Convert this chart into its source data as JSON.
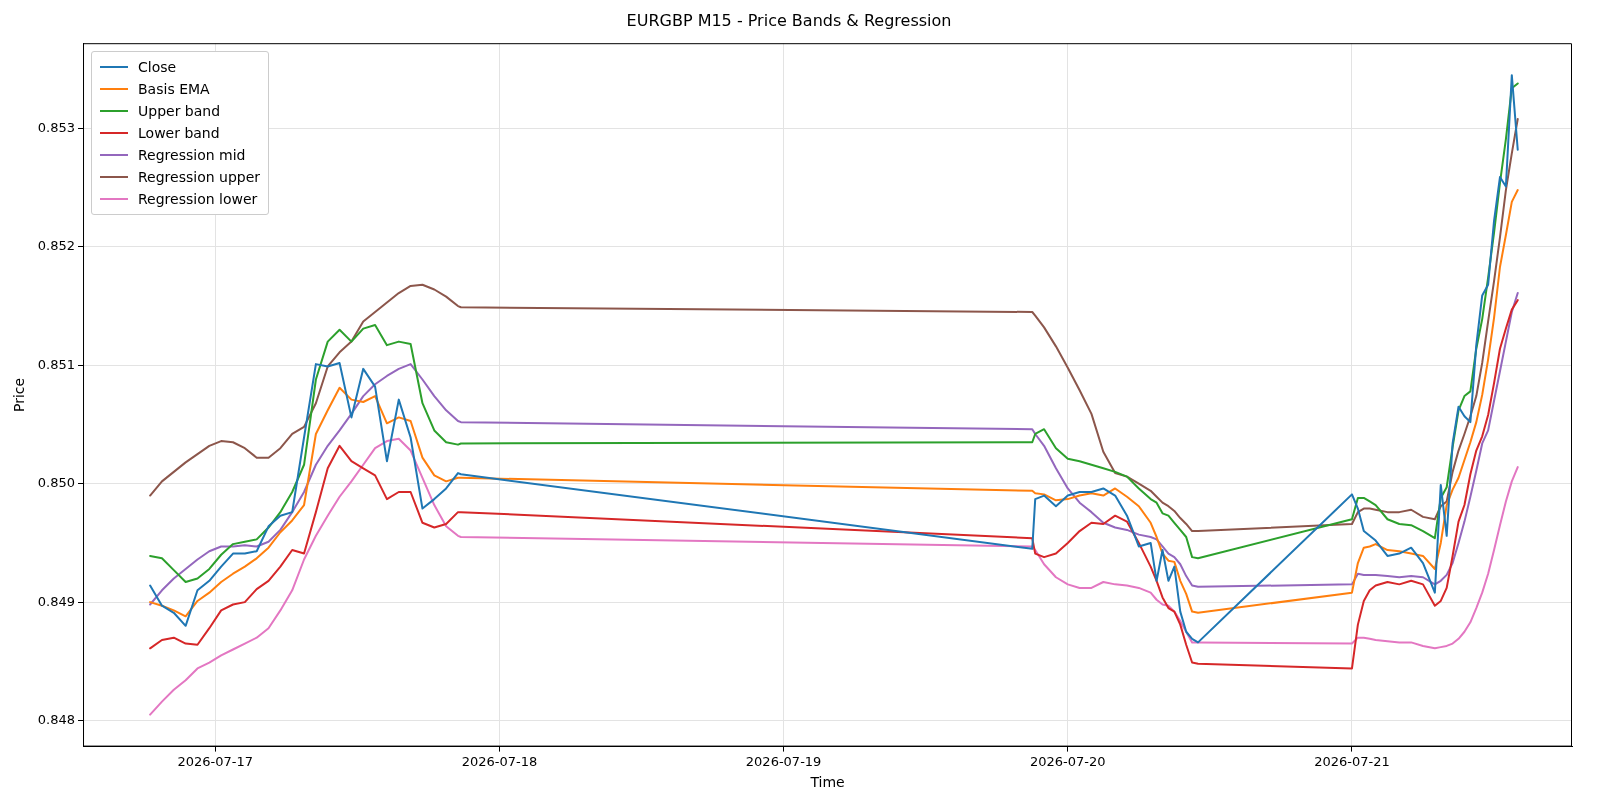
{
  "chart_data": {
    "type": "line",
    "title": "EURGBP M15 - Price Bands & Regression",
    "xlabel": "Time",
    "ylabel": "Price",
    "x": [
      "2026-07-16T18:30",
      "2026-07-16T19:30",
      "2026-07-16T20:30",
      "2026-07-16T21:30",
      "2026-07-16T22:30",
      "2026-07-16T23:30",
      "2026-07-17T00:30",
      "2026-07-17T01:30",
      "2026-07-17T02:30",
      "2026-07-17T03:30",
      "2026-07-17T04:30",
      "2026-07-17T05:30",
      "2026-07-17T06:30",
      "2026-07-17T07:30",
      "2026-07-17T08:30",
      "2026-07-17T09:30",
      "2026-07-17T10:30",
      "2026-07-17T11:30",
      "2026-07-17T12:30",
      "2026-07-17T13:30",
      "2026-07-17T14:30",
      "2026-07-17T15:30",
      "2026-07-17T16:30",
      "2026-07-17T17:30",
      "2026-07-17T18:30",
      "2026-07-17T19:30",
      "2026-07-17T20:30",
      "2026-07-17T20:45",
      "2026-07-19T21:00",
      "2026-07-19T21:15",
      "2026-07-19T22:00",
      "2026-07-19T23:00",
      "2026-07-20T00:00",
      "2026-07-20T01:00",
      "2026-07-20T02:00",
      "2026-07-20T03:00",
      "2026-07-20T04:00",
      "2026-07-20T05:00",
      "2026-07-20T06:00",
      "2026-07-20T07:00",
      "2026-07-20T07:30",
      "2026-07-20T08:00",
      "2026-07-20T08:30",
      "2026-07-20T09:00",
      "2026-07-20T09:30",
      "2026-07-20T10:00",
      "2026-07-20T10:30",
      "2026-07-20T11:00",
      "2026-07-21T00:00",
      "2026-07-21T00:30",
      "2026-07-21T01:00",
      "2026-07-21T01:30",
      "2026-07-21T02:00",
      "2026-07-21T03:00",
      "2026-07-21T04:00",
      "2026-07-21T05:00",
      "2026-07-21T06:00",
      "2026-07-21T07:00",
      "2026-07-21T07:30",
      "2026-07-21T08:00",
      "2026-07-21T08:30",
      "2026-07-21T09:00",
      "2026-07-21T09:30",
      "2026-07-21T10:00",
      "2026-07-21T10:30",
      "2026-07-21T11:00",
      "2026-07-21T11:30",
      "2026-07-21T12:00",
      "2026-07-21T12:30",
      "2026-07-21T13:00",
      "2026-07-21T13:30",
      "2026-07-21T14:00"
    ],
    "series": [
      {
        "name": "Close",
        "color": "#1f77b4",
        "values": [
          0.84914,
          0.84897,
          0.84891,
          0.8488,
          0.8491,
          0.84918,
          0.8493,
          0.84941,
          0.84941,
          0.84943,
          0.84964,
          0.84973,
          0.84976,
          0.85039,
          0.85101,
          0.85099,
          0.85102,
          0.85056,
          0.85097,
          0.85082,
          0.85019,
          0.85071,
          0.85039,
          0.84979,
          0.84987,
          0.84996,
          0.85009,
          0.85008,
          0.84945,
          0.84987,
          0.8499,
          0.84981,
          0.8499,
          0.84993,
          0.84993,
          0.84996,
          0.8499,
          0.84973,
          0.84947,
          0.8495,
          0.84918,
          0.84944,
          0.84918,
          0.8493,
          0.84892,
          0.84875,
          0.84869,
          0.84866,
          0.84991,
          0.84979,
          0.8496,
          0.84956,
          0.84952,
          0.84939,
          0.84941,
          0.84946,
          0.84933,
          0.84908,
          0.84999,
          0.84956,
          0.85034,
          0.85065,
          0.85057,
          0.85052,
          0.85117,
          0.85159,
          0.85168,
          0.85222,
          0.85259,
          0.85251,
          0.85345,
          0.85282
        ]
      },
      {
        "name": "Basis EMA",
        "color": "#ff7f0e",
        "values": [
          0.849,
          0.84897,
          0.84893,
          0.84888,
          0.84901,
          0.84908,
          0.84917,
          0.84924,
          0.8493,
          0.84937,
          0.84946,
          0.84959,
          0.84969,
          0.84982,
          0.85042,
          0.85062,
          0.85081,
          0.85071,
          0.85069,
          0.85074,
          0.85051,
          0.85056,
          0.85053,
          0.85022,
          0.85007,
          0.85002,
          0.85005,
          0.85005,
          0.84994,
          0.84992,
          0.84991,
          0.84986,
          0.84987,
          0.8499,
          0.84992,
          0.8499,
          0.84996,
          0.84989,
          0.84981,
          0.84967,
          0.84955,
          0.84941,
          0.84935,
          0.84934,
          0.84918,
          0.84907,
          0.84892,
          0.84891,
          0.84908,
          0.84933,
          0.84946,
          0.84947,
          0.84949,
          0.84944,
          0.84943,
          0.84941,
          0.84939,
          0.84928,
          0.8495,
          0.84982,
          0.84995,
          0.85005,
          0.8502,
          0.85035,
          0.85052,
          0.85075,
          0.85105,
          0.8514,
          0.85183,
          0.8521,
          0.85238,
          0.85248
        ]
      },
      {
        "name": "Upper band",
        "color": "#2ca02c",
        "values": [
          0.84939,
          0.84937,
          0.84927,
          0.84917,
          0.8492,
          0.84928,
          0.8494,
          0.84949,
          0.84951,
          0.84953,
          0.84963,
          0.84976,
          0.84993,
          0.85016,
          0.85088,
          0.8512,
          0.8513,
          0.8512,
          0.85131,
          0.85134,
          0.85117,
          0.8512,
          0.85118,
          0.85068,
          0.85045,
          0.85035,
          0.85033,
          0.85034,
          0.85035,
          0.85042,
          0.85046,
          0.8503,
          0.85021,
          0.85019,
          0.85016,
          0.85013,
          0.8501,
          0.85006,
          0.84996,
          0.84987,
          0.84984,
          0.84975,
          0.84973,
          0.84967,
          0.84961,
          0.84955,
          0.84938,
          0.84937,
          0.8497,
          0.84988,
          0.84988,
          0.84985,
          0.84982,
          0.8497,
          0.84966,
          0.84965,
          0.8496,
          0.84954,
          0.84988,
          0.84997,
          0.85031,
          0.85062,
          0.85074,
          0.85078,
          0.85114,
          0.85139,
          0.85174,
          0.85212,
          0.85254,
          0.85291,
          0.85334,
          0.85338
        ]
      },
      {
        "name": "Lower band",
        "color": "#d62728",
        "values": [
          0.84861,
          0.84868,
          0.8487,
          0.84865,
          0.84864,
          0.84878,
          0.84893,
          0.84898,
          0.849,
          0.84911,
          0.84918,
          0.8493,
          0.84944,
          0.84941,
          0.84976,
          0.85013,
          0.85032,
          0.85019,
          0.85013,
          0.85007,
          0.84987,
          0.84993,
          0.84993,
          0.84967,
          0.84963,
          0.84966,
          0.84976,
          0.84976,
          0.84954,
          0.84941,
          0.84938,
          0.84941,
          0.8495,
          0.8496,
          0.84967,
          0.84966,
          0.84973,
          0.84968,
          0.8495,
          0.8493,
          0.84918,
          0.84904,
          0.84895,
          0.84892,
          0.84881,
          0.84864,
          0.84849,
          0.84848,
          0.84844,
          0.84881,
          0.84901,
          0.8491,
          0.84914,
          0.84917,
          0.84915,
          0.84918,
          0.84915,
          0.84897,
          0.84901,
          0.84912,
          0.84939,
          0.84968,
          0.84982,
          0.85008,
          0.85028,
          0.8504,
          0.85058,
          0.85085,
          0.85114,
          0.85131,
          0.85147,
          0.85155
        ]
      },
      {
        "name": "Regression mid",
        "color": "#9467bd",
        "values": [
          0.84898,
          0.8491,
          0.8492,
          0.84928,
          0.84936,
          0.84943,
          0.84947,
          0.84947,
          0.84948,
          0.84947,
          0.84951,
          0.84961,
          0.84976,
          0.84993,
          0.85016,
          0.85032,
          0.85045,
          0.85059,
          0.85074,
          0.85084,
          0.85091,
          0.85097,
          0.85101,
          0.85088,
          0.85074,
          0.85062,
          0.85053,
          0.85052,
          0.85046,
          0.85042,
          0.85032,
          0.85013,
          0.84996,
          0.84984,
          0.84976,
          0.84967,
          0.84963,
          0.84961,
          0.84957,
          0.84955,
          0.84953,
          0.84947,
          0.84941,
          0.84938,
          0.84932,
          0.84922,
          0.84914,
          0.84913,
          0.84915,
          0.84924,
          0.84923,
          0.84923,
          0.84923,
          0.84922,
          0.84921,
          0.84922,
          0.84921,
          0.84915,
          0.84918,
          0.84923,
          0.84933,
          0.8495,
          0.84968,
          0.84989,
          0.85011,
          0.85034,
          0.85045,
          0.8507,
          0.85095,
          0.8512,
          0.85145,
          0.85161
        ]
      },
      {
        "name": "Regression upper",
        "color": "#8c564b",
        "values": [
          0.8499,
          0.85002,
          0.8501,
          0.85018,
          0.85025,
          0.85032,
          0.85036,
          0.85035,
          0.8503,
          0.85022,
          0.85022,
          0.8503,
          0.85042,
          0.85048,
          0.85068,
          0.85099,
          0.85111,
          0.8512,
          0.85137,
          0.85145,
          0.85153,
          0.85161,
          0.85167,
          0.85168,
          0.85164,
          0.85158,
          0.8515,
          0.85149,
          0.85145,
          0.85142,
          0.85132,
          0.85116,
          0.85098,
          0.85079,
          0.85059,
          0.85027,
          0.85009,
          0.85006,
          0.85,
          0.84994,
          0.84989,
          0.84984,
          0.84981,
          0.84977,
          0.84971,
          0.84966,
          0.8496,
          0.8496,
          0.84966,
          0.84976,
          0.84979,
          0.84979,
          0.84978,
          0.84976,
          0.84976,
          0.84978,
          0.84972,
          0.8497,
          0.84981,
          0.84985,
          0.8501,
          0.85028,
          0.85042,
          0.85057,
          0.85074,
          0.85102,
          0.85137,
          0.85171,
          0.85208,
          0.85248,
          0.85279,
          0.85308
        ]
      },
      {
        "name": "Regression lower",
        "color": "#e377c2",
        "values": [
          0.84805,
          0.84816,
          0.84826,
          0.84834,
          0.84844,
          0.84849,
          0.84855,
          0.8486,
          0.84865,
          0.8487,
          0.84878,
          0.84893,
          0.8491,
          0.84936,
          0.84956,
          0.84973,
          0.84989,
          0.85002,
          0.85016,
          0.8503,
          0.85036,
          0.85038,
          0.85028,
          0.85005,
          0.84982,
          0.84964,
          0.84956,
          0.84955,
          0.84947,
          0.84944,
          0.84932,
          0.84921,
          0.84915,
          0.84912,
          0.84912,
          0.84917,
          0.84915,
          0.84914,
          0.84912,
          0.84908,
          0.84902,
          0.84898,
          0.84897,
          0.84892,
          0.84884,
          0.84875,
          0.84866,
          0.84866,
          0.84865,
          0.8487,
          0.8487,
          0.84869,
          0.84868,
          0.84867,
          0.84866,
          0.84866,
          0.84863,
          0.84861,
          0.84862,
          0.84863,
          0.84865,
          0.84869,
          0.84875,
          0.84883,
          0.84895,
          0.84908,
          0.84924,
          0.84944,
          0.84965,
          0.84985,
          0.85002,
          0.85014
        ]
      }
    ],
    "xlim": [
      "2026-07-16T12:50",
      "2026-07-21T18:35"
    ],
    "xticks": [
      {
        "value": "2026-07-17",
        "label": "2026-07-17"
      },
      {
        "value": "2026-07-18",
        "label": "2026-07-18"
      },
      {
        "value": "2026-07-19",
        "label": "2026-07-19"
      },
      {
        "value": "2026-07-20",
        "label": "2026-07-20"
      },
      {
        "value": "2026-07-21",
        "label": "2026-07-21"
      }
    ],
    "ylim": [
      0.84778,
      0.85372
    ],
    "yticks": [
      0.848,
      0.849,
      {
        "value": 0.85,
        "label": "0.850"
      },
      0.851,
      0.852,
      0.853
    ],
    "grid": true,
    "legend": "top left",
    "marker": "none",
    "line_style": "solid"
  }
}
